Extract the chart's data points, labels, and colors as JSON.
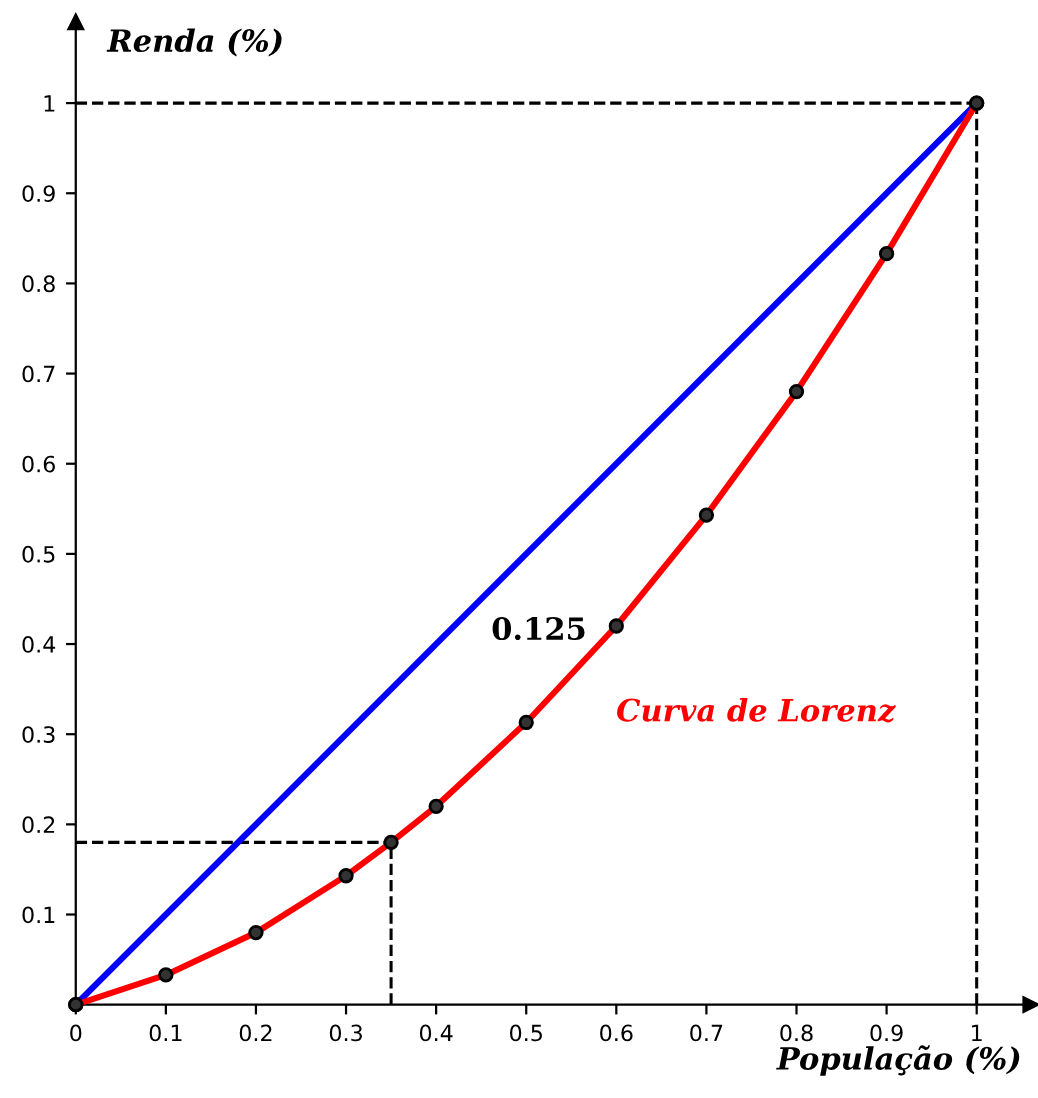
{
  "chart_data": {
    "type": "line",
    "xlabel": "População (%)",
    "ylabel": "Renda (%)",
    "xlim": [
      0,
      1.06
    ],
    "ylim": [
      0,
      1.09
    ],
    "xticks": [
      0,
      0.1,
      0.2,
      0.3,
      0.4,
      0.5,
      0.6,
      0.7,
      0.8,
      0.9,
      1
    ],
    "yticks": [
      0.1,
      0.2,
      0.3,
      0.4,
      0.5,
      0.6,
      0.7,
      0.8,
      0.9,
      1
    ],
    "series": [
      {
        "color": "#0000ff",
        "x": [
          0,
          1
        ],
        "values": [
          0,
          1
        ],
        "marker": "circle"
      },
      {
        "color": "#ff0000",
        "x": [
          0,
          0.1,
          0.2,
          0.3,
          0.35,
          0.4,
          0.5,
          0.6,
          0.7,
          0.8,
          0.9,
          1
        ],
        "values": [
          0,
          0.033,
          0.08,
          0.143,
          0.18,
          0.22,
          0.313,
          0.42,
          0.543,
          0.68,
          0.833,
          1
        ],
        "marker": "circle"
      }
    ],
    "ref_lines": [
      {
        "axis": "x",
        "value": 0.35,
        "line_style": "dashed",
        "color": "#000000"
      },
      {
        "axis": "y",
        "value": 0.18,
        "line_style": "dashed",
        "color": "#000000"
      },
      {
        "axis": "x",
        "value": 1,
        "line_style": "dashed",
        "color": "#000000"
      },
      {
        "axis": "y",
        "value": 1,
        "line_style": "dashed",
        "color": "#000000"
      }
    ],
    "annotations": [
      "0.125",
      "Curva de Lorenz"
    ],
    "grid": false,
    "legend": false
  }
}
